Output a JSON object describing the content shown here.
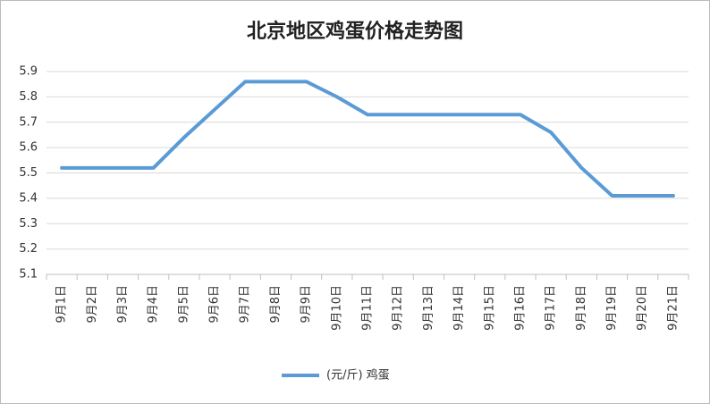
{
  "chart_data": {
    "type": "line",
    "title": "北京地区鸡蛋价格走势图",
    "categories": [
      "9月1日",
      "9月2日",
      "9月3日",
      "9月4日",
      "9月5日",
      "9月6日",
      "9月7日",
      "9月8日",
      "9月9日",
      "9月10日",
      "9月11日",
      "9月12日",
      "9月13日",
      "9月14日",
      "9月15日",
      "9月16日",
      "9月17日",
      "9月18日",
      "9月19日",
      "9月20日",
      "9月21日"
    ],
    "series": [
      {
        "name": "(元/斤) 鸡蛋",
        "color": "#5b9bd5",
        "values": [
          5.52,
          5.52,
          5.52,
          5.52,
          5.64,
          5.75,
          5.86,
          5.86,
          5.86,
          5.8,
          5.73,
          5.73,
          5.73,
          5.73,
          5.73,
          5.73,
          5.66,
          5.52,
          5.41,
          5.41,
          5.41
        ]
      }
    ],
    "ylim": [
      5.1,
      5.9
    ],
    "yticks": [
      5.1,
      5.2,
      5.3,
      5.4,
      5.5,
      5.6,
      5.7,
      5.8,
      5.9
    ],
    "grid": true,
    "legend": "bottom"
  }
}
